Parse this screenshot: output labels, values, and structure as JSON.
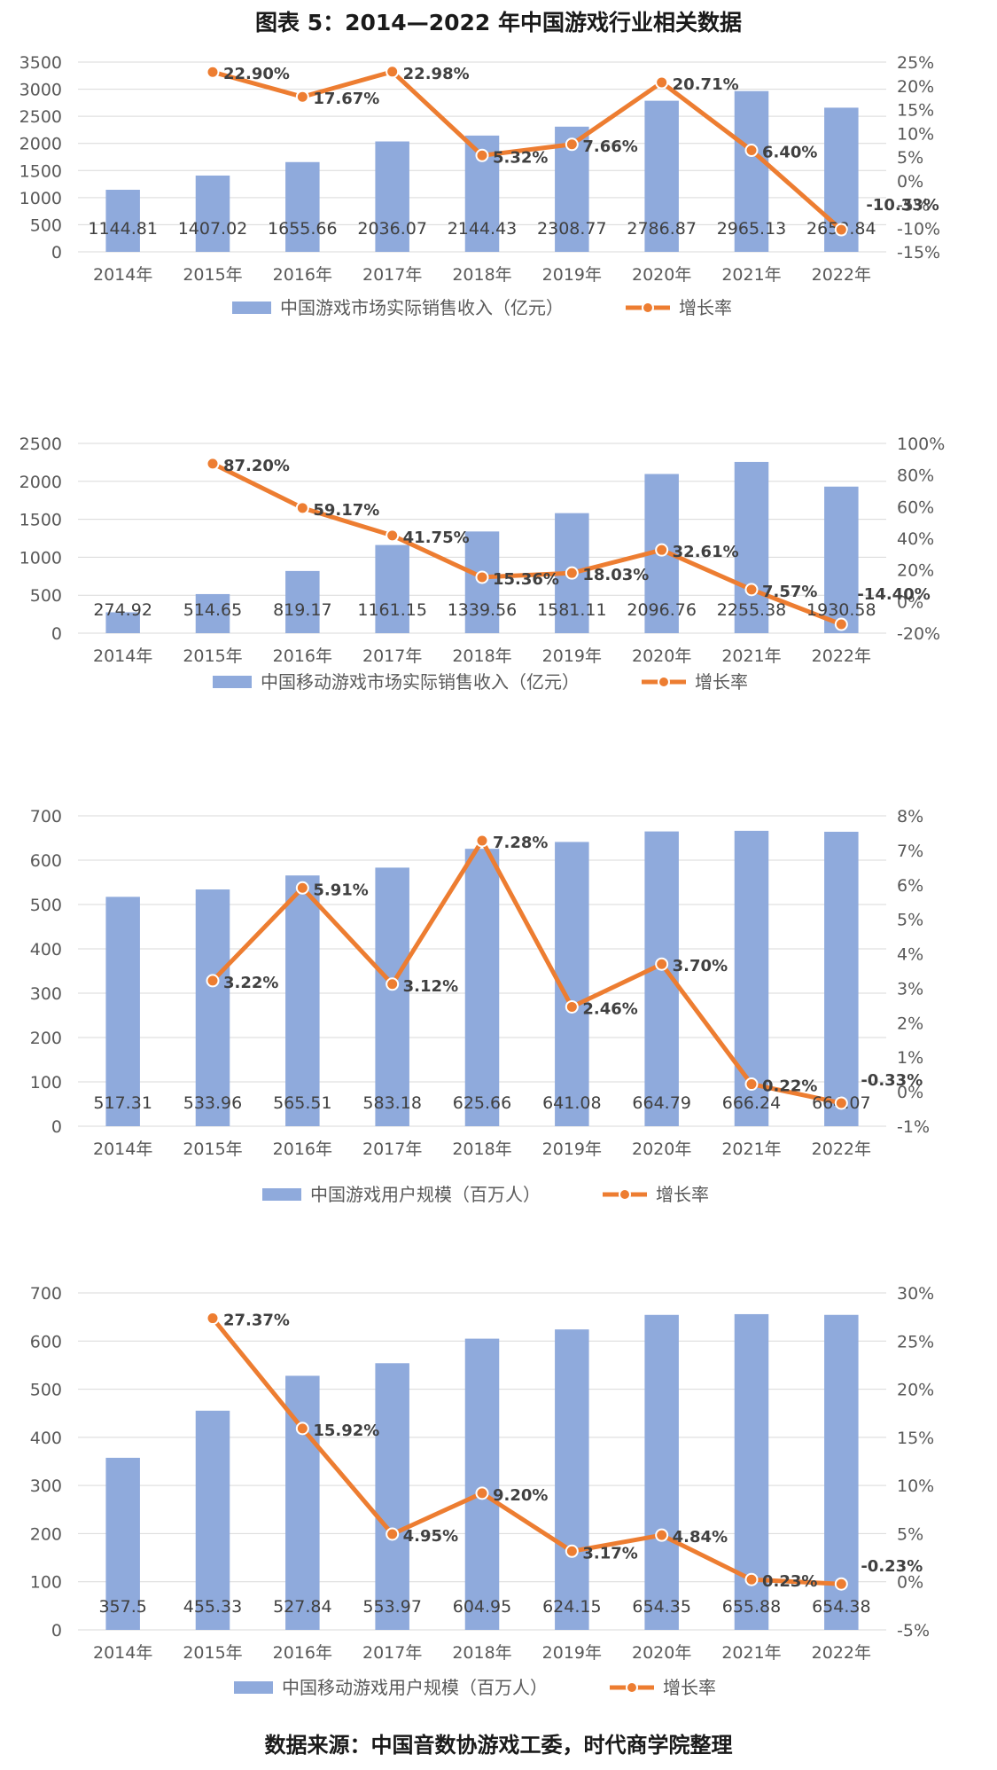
{
  "title": "图表 5：2014—2022 年中国游戏行业相关数据",
  "source": "数据来源：中国音数协游戏工委，时代商学院整理",
  "colors": {
    "bar": "#8FAADC",
    "line": "#ED7D31",
    "text": "#595959",
    "grid": "#D9D9D9"
  },
  "chart_data": [
    {
      "type": "bar",
      "categories": [
        "2014年",
        "2015年",
        "2016年",
        "2017年",
        "2018年",
        "2019年",
        "2020年",
        "2021年",
        "2022年"
      ],
      "series": [
        {
          "name": "中国游戏市场实际销售收入（亿元）",
          "axis": "left",
          "values": [
            1144.81,
            1407.02,
            1655.66,
            2036.07,
            2144.43,
            2308.77,
            2786.87,
            2965.13,
            2658.84
          ],
          "labels": [
            "1144.81",
            "1407.02",
            "1655.66",
            "2036.07",
            "2144.43",
            "2308.77",
            "2786.87",
            "2965.13",
            "2658.84"
          ]
        },
        {
          "name": "增长率",
          "type": "line",
          "axis": "right",
          "values": [
            null,
            22.9,
            17.67,
            22.98,
            5.32,
            7.66,
            20.71,
            6.4,
            -10.33
          ],
          "labels": [
            "",
            "22.90%",
            "17.67%",
            "22.98%",
            "5.32%",
            "7.66%",
            "20.71%",
            "6.40%",
            "-10.33%"
          ]
        }
      ],
      "ylim": [
        0,
        3500
      ],
      "yticks": [
        "0",
        "500",
        "1000",
        "1500",
        "2000",
        "2500",
        "3000",
        "3500"
      ],
      "y2lim": [
        -15,
        25
      ],
      "y2ticks": [
        "-15%",
        "-10%",
        "-5%",
        "0%",
        "5%",
        "10%",
        "15%",
        "20%",
        "25%"
      ],
      "grid": true,
      "legend": "bottom"
    },
    {
      "type": "bar",
      "categories": [
        "2014年",
        "2015年",
        "2016年",
        "2017年",
        "2018年",
        "2019年",
        "2020年",
        "2021年",
        "2022年"
      ],
      "series": [
        {
          "name": "中国移动游戏市场实际销售收入（亿元）",
          "axis": "left",
          "values": [
            274.92,
            514.65,
            819.17,
            1161.15,
            1339.56,
            1581.11,
            2096.76,
            2255.38,
            1930.58
          ],
          "labels": [
            "274.92",
            "514.65",
            "819.17",
            "1161.15",
            "1339.56",
            "1581.11",
            "2096.76",
            "2255.38",
            "1930.58"
          ]
        },
        {
          "name": "增长率",
          "type": "line",
          "axis": "right",
          "values": [
            null,
            87.2,
            59.17,
            41.75,
            15.36,
            18.03,
            32.61,
            7.57,
            -14.4
          ],
          "labels": [
            "",
            "87.20%",
            "59.17%",
            "41.75%",
            "15.36%",
            "18.03%",
            "32.61%",
            "7.57%",
            "-14.40%"
          ]
        }
      ],
      "ylim": [
        0,
        2500
      ],
      "yticks": [
        "0",
        "500",
        "1000",
        "1500",
        "2000",
        "2500"
      ],
      "y2lim": [
        -20,
        100
      ],
      "y2ticks": [
        "-20%",
        "0%",
        "20%",
        "40%",
        "60%",
        "80%",
        "100%"
      ],
      "grid": true,
      "legend": "bottom"
    },
    {
      "type": "bar",
      "categories": [
        "2014年",
        "2015年",
        "2016年",
        "2017年",
        "2018年",
        "2019年",
        "2020年",
        "2021年",
        "2022年"
      ],
      "series": [
        {
          "name": "中国游戏用户规模（百万人）",
          "axis": "left",
          "values": [
            517.31,
            533.96,
            565.51,
            583.18,
            625.66,
            641.08,
            664.79,
            666.24,
            664.07
          ],
          "labels": [
            "517.31",
            "533.96",
            "565.51",
            "583.18",
            "625.66",
            "641.08",
            "664.79",
            "666.24",
            "664.07"
          ]
        },
        {
          "name": "增长率",
          "type": "line",
          "axis": "right",
          "values": [
            null,
            3.22,
            5.91,
            3.12,
            7.28,
            2.46,
            3.7,
            0.22,
            -0.33
          ],
          "labels": [
            "",
            "3.22%",
            "5.91%",
            "3.12%",
            "7.28%",
            "2.46%",
            "3.70%",
            "0.22%",
            "-0.33%"
          ]
        }
      ],
      "ylim": [
        0,
        700
      ],
      "yticks": [
        "0",
        "100",
        "200",
        "300",
        "400",
        "500",
        "600",
        "700"
      ],
      "y2lim": [
        -1,
        8
      ],
      "y2ticks": [
        "-1%",
        "0%",
        "1%",
        "2%",
        "3%",
        "4%",
        "5%",
        "6%",
        "7%",
        "8%"
      ],
      "grid": true,
      "legend": "bottom"
    },
    {
      "type": "bar",
      "categories": [
        "2014年",
        "2015年",
        "2016年",
        "2017年",
        "2018年",
        "2019年",
        "2020年",
        "2021年",
        "2022年"
      ],
      "series": [
        {
          "name": "中国移动游戏用户规模（百万人）",
          "axis": "left",
          "values": [
            357.5,
            455.33,
            527.84,
            553.97,
            604.95,
            624.15,
            654.35,
            655.88,
            654.38
          ],
          "labels": [
            "357.5",
            "455.33",
            "527.84",
            "553.97",
            "604.95",
            "624.15",
            "654.35",
            "655.88",
            "654.38"
          ]
        },
        {
          "name": "增长率",
          "type": "line",
          "axis": "right",
          "values": [
            null,
            27.37,
            15.92,
            4.95,
            9.2,
            3.17,
            4.84,
            0.23,
            -0.23
          ],
          "labels": [
            "",
            "27.37%",
            "15.92%",
            "4.95%",
            "9.20%",
            "3.17%",
            "4.84%",
            "0.23%",
            "-0.23%"
          ]
        }
      ],
      "ylim": [
        0,
        700
      ],
      "yticks": [
        "0",
        "100",
        "200",
        "300",
        "400",
        "500",
        "600",
        "700"
      ],
      "y2lim": [
        -5,
        30
      ],
      "y2ticks": [
        "-5%",
        "0%",
        "5%",
        "10%",
        "15%",
        "20%",
        "25%",
        "30%"
      ],
      "grid": true,
      "legend": "bottom"
    }
  ]
}
